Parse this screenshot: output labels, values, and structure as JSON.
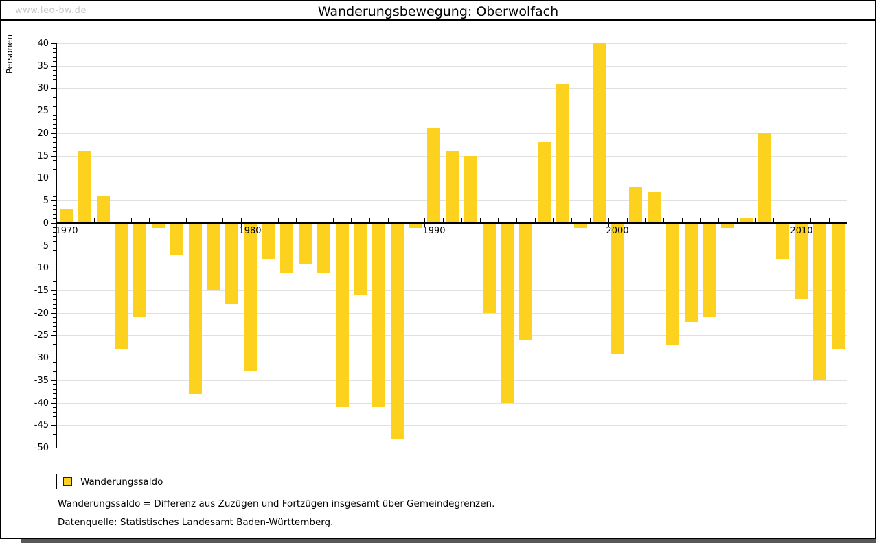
{
  "window": {
    "watermark": "www.leo-bw.de",
    "title": "Wanderungsbewegung: Oberwolfach"
  },
  "chart_data": {
    "type": "bar",
    "title": "Wanderungsbewegung: Oberwolfach",
    "ylabel": "Personen",
    "xlabel": "",
    "ylim": [
      -50,
      40
    ],
    "ytick_step": 5,
    "yticks": [
      40,
      35,
      30,
      25,
      20,
      15,
      10,
      5,
      0,
      -5,
      -10,
      -15,
      -20,
      -25,
      -30,
      -35,
      -40,
      -45,
      -50
    ],
    "grid": true,
    "legend_position": "bottom-left",
    "series_name": "Wanderungssaldo",
    "bar_color": "#FCD21E",
    "x": [
      1970,
      1971,
      1972,
      1973,
      1974,
      1975,
      1976,
      1977,
      1978,
      1979,
      1980,
      1981,
      1982,
      1983,
      1984,
      1985,
      1986,
      1987,
      1988,
      1989,
      1990,
      1991,
      1992,
      1993,
      1994,
      1995,
      1996,
      1997,
      1998,
      1999,
      2000,
      2001,
      2002,
      2003,
      2004,
      2005,
      2006,
      2007,
      2008,
      2009,
      2010,
      2011,
      2012
    ],
    "values": [
      3,
      16,
      6,
      -28,
      -21,
      -1,
      -7,
      -38,
      -15,
      -18,
      -33,
      -8,
      -11,
      -9,
      -11,
      -41,
      -16,
      -41,
      -48,
      -1,
      21,
      16,
      15,
      -20,
      -40,
      -26,
      18,
      31,
      -1,
      40,
      -29,
      8,
      7,
      -27,
      -22,
      -21,
      -1,
      1,
      20,
      -8,
      -17,
      -35,
      -28
    ],
    "decade_tick_labels": [
      "1970",
      "1980",
      "1990",
      "2000",
      "2010"
    ]
  },
  "legend": {
    "label": "Wanderungssaldo"
  },
  "footnotes": {
    "definition": "Wanderungssaldo = Differenz aus Zuzügen und Fortzügen insgesamt über Gemeindegrenzen.",
    "source": "Datenquelle: Statistisches Landesamt Baden-Württemberg."
  },
  "colors": {
    "bar": "#FCD21E",
    "gridline": "#E0E0E0",
    "axis": "#000000",
    "text": "#000000",
    "watermark": "#C9C9C9",
    "window_shadow": "#58585A",
    "background": "#FFFFFF"
  }
}
